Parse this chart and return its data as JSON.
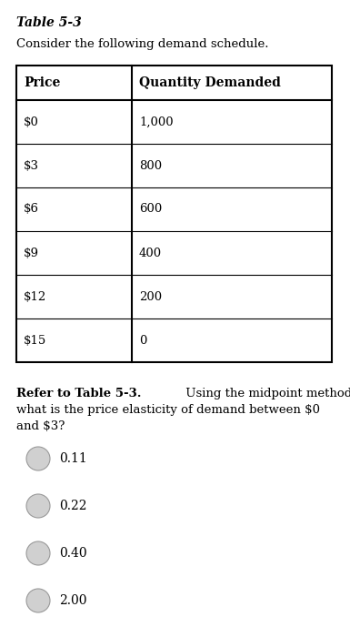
{
  "title": "Table 5-3",
  "subtitle": "Consider the following demand schedule.",
  "col_headers": [
    "Price",
    "Quantity Demanded"
  ],
  "rows": [
    [
      "$0",
      "1,000"
    ],
    [
      "$3",
      "800"
    ],
    [
      "$6",
      "600"
    ],
    [
      "$9",
      "400"
    ],
    [
      "$12",
      "200"
    ],
    [
      "$15",
      "0"
    ]
  ],
  "question_bold": "Refer to Table 5-3.",
  "question_line1_rest": " Using the midpoint method,",
  "question_line2": "what is the price elasticity of demand between $0",
  "question_line3": "and $3?",
  "choices": [
    "0.11",
    "0.22",
    "0.40",
    "2.00"
  ],
  "bg_color": "#ffffff",
  "text_color": "#000000",
  "table_border_color": "#000000",
  "title_fontsize": 10,
  "subtitle_fontsize": 9.5,
  "header_fontsize": 10,
  "cell_fontsize": 9.5,
  "question_fontsize": 9.5,
  "choice_fontsize": 10
}
